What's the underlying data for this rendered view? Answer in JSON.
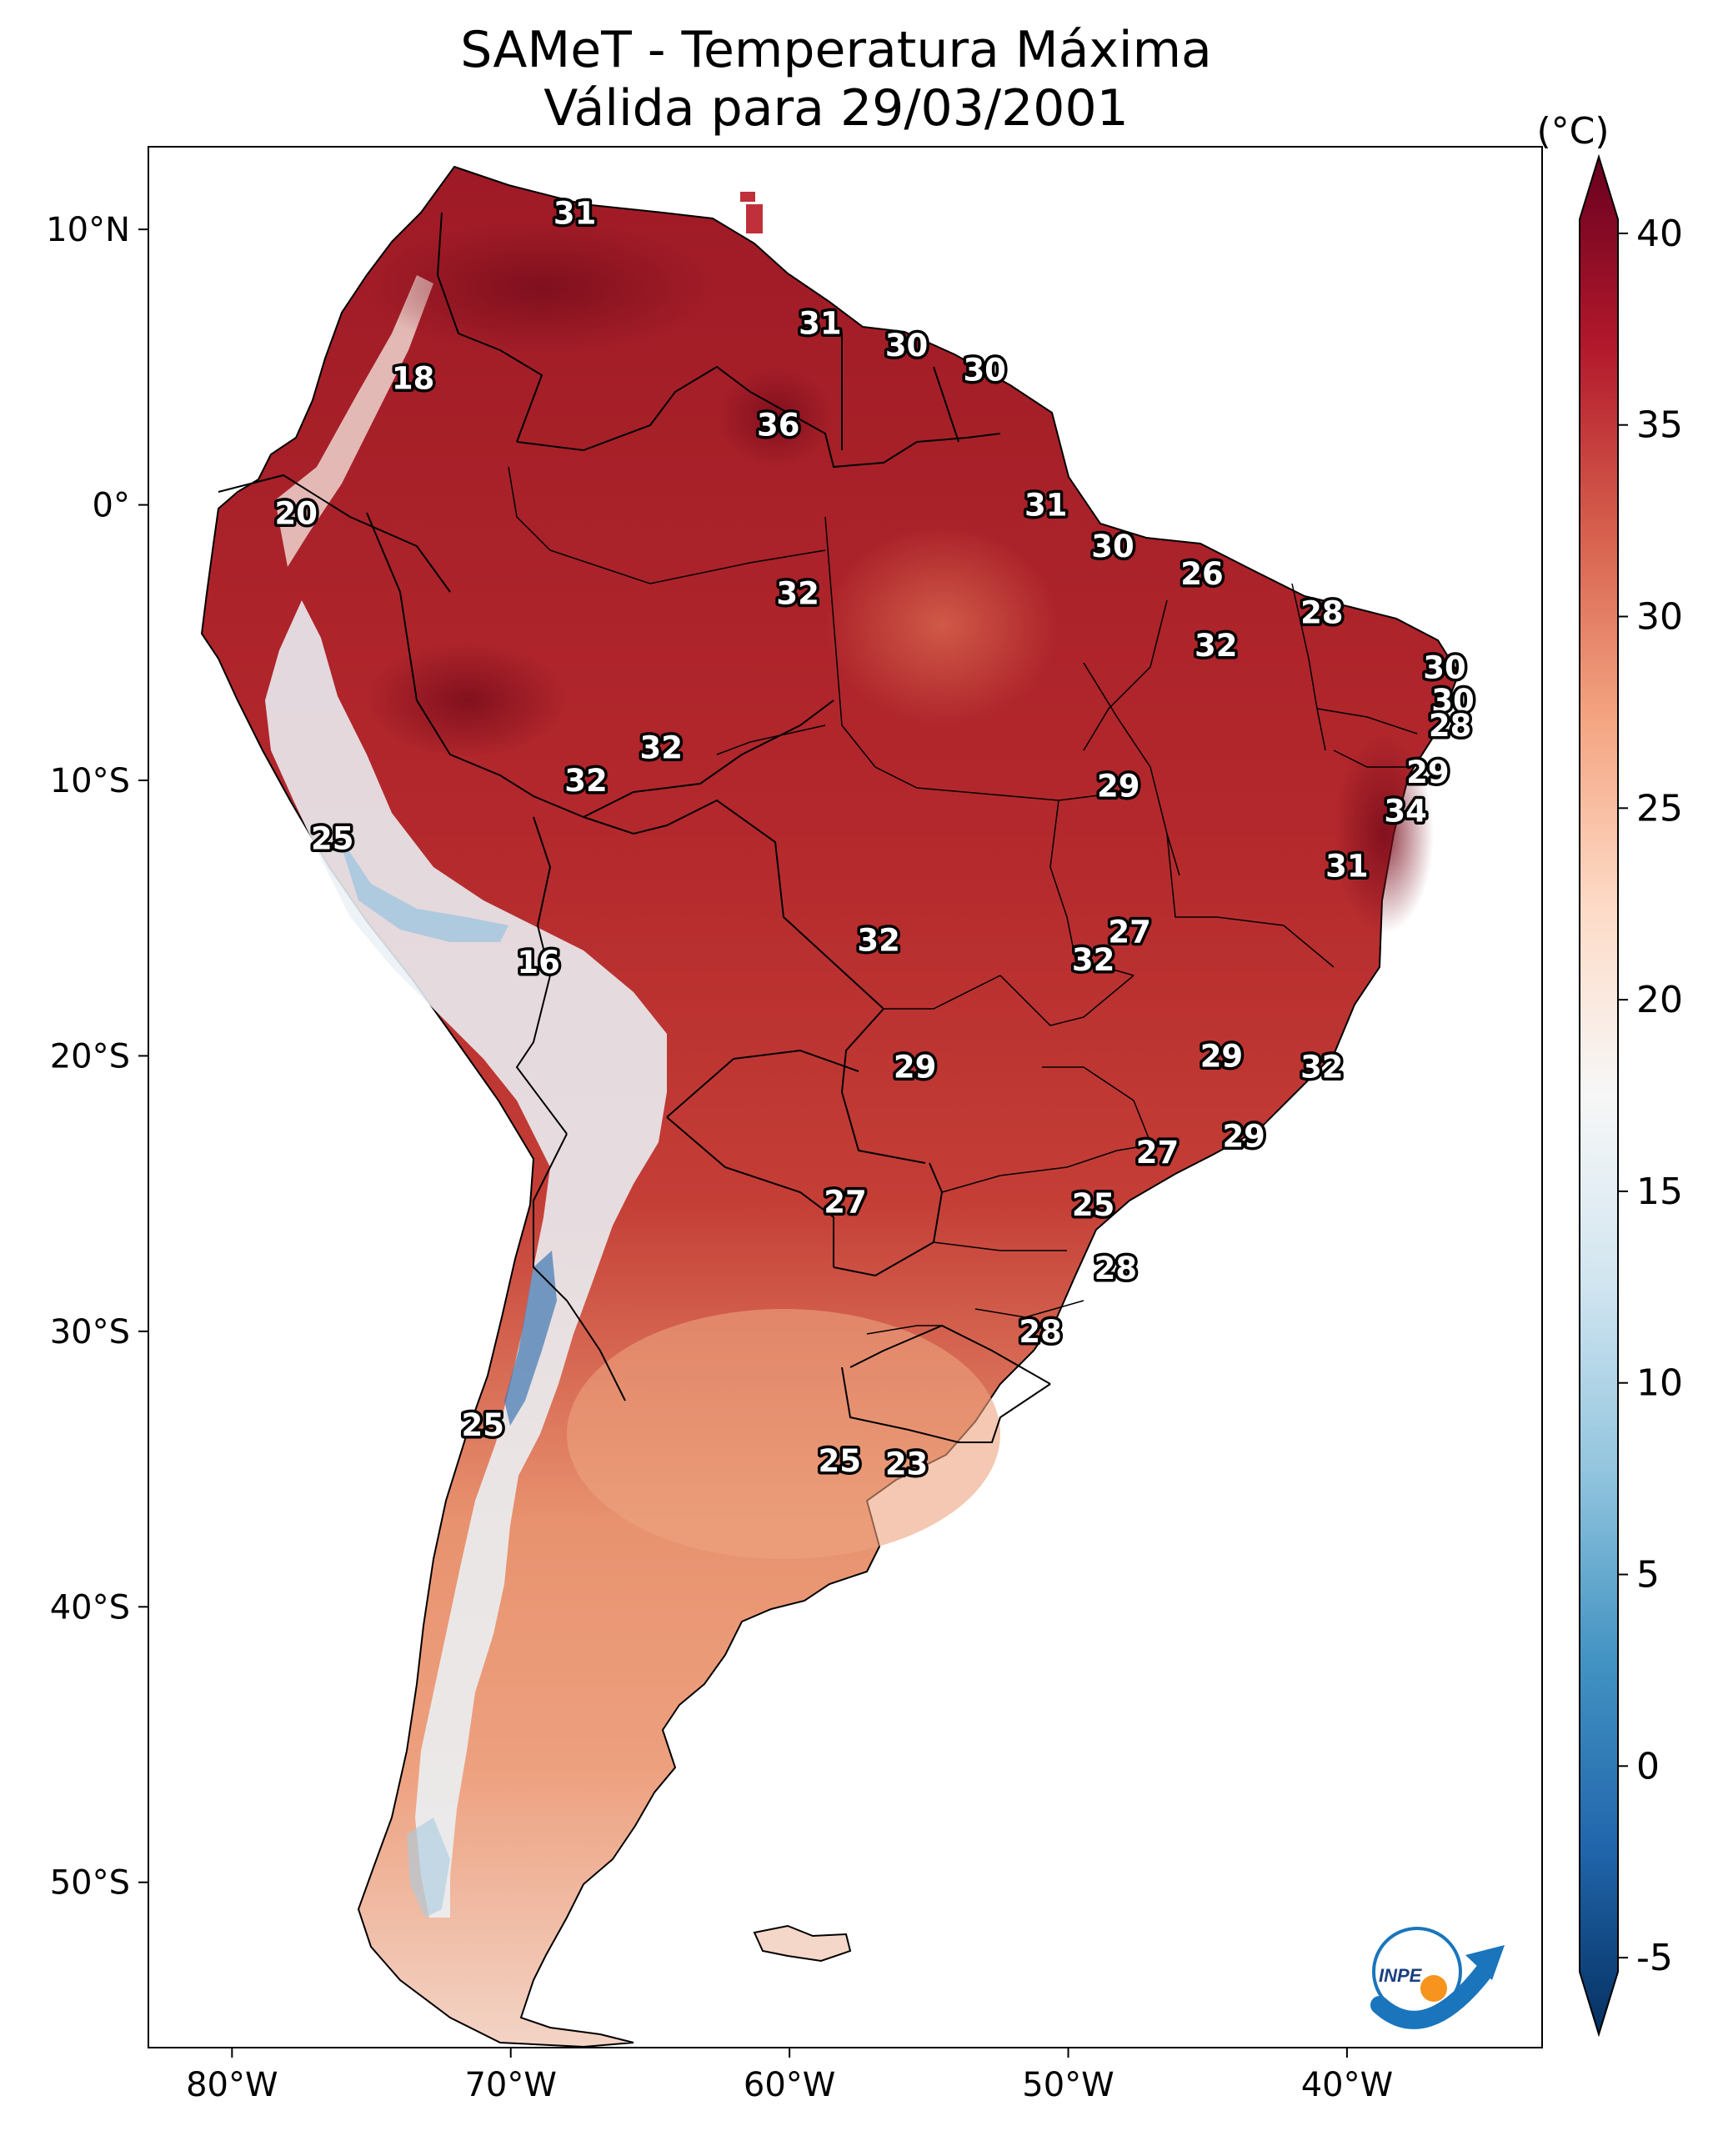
{
  "title_line1": "SAMeT - Temperatura Máxima",
  "title_line2": "Válida para 29/03/2001",
  "colorbar": {
    "unit": "(°C)",
    "min": -7,
    "max": 42,
    "ticks": [
      {
        "v": 40,
        "t": "40"
      },
      {
        "v": 35,
        "t": "35"
      },
      {
        "v": 30,
        "t": "30"
      },
      {
        "v": 25,
        "t": "25"
      },
      {
        "v": 20,
        "t": "20"
      },
      {
        "v": 15,
        "t": "15"
      },
      {
        "v": 10,
        "t": "10"
      },
      {
        "v": 5,
        "t": "5"
      },
      {
        "v": 0,
        "t": "0"
      },
      {
        "v": -5,
        "t": "-5"
      }
    ],
    "colors": [
      "#053061",
      "#2166ac",
      "#4393c3",
      "#92c5de",
      "#d1e5f0",
      "#f7f7f7",
      "#fddbc7",
      "#f4a582",
      "#d6604d",
      "#b2182b",
      "#67001f"
    ]
  },
  "chart_data": {
    "type": "map",
    "extent": {
      "lon": [
        -83,
        -33
      ],
      "lat": [
        -56,
        13
      ]
    },
    "lon_ticks": [
      {
        "v": -80,
        "t": "80°W"
      },
      {
        "v": -70,
        "t": "70°W"
      },
      {
        "v": -60,
        "t": "60°W"
      },
      {
        "v": -50,
        "t": "50°W"
      },
      {
        "v": -40,
        "t": "40°W"
      }
    ],
    "lat_ticks": [
      {
        "v": 10,
        "t": "10°N"
      },
      {
        "v": 0,
        "t": "0°"
      },
      {
        "v": -10,
        "t": "10°S"
      },
      {
        "v": -20,
        "t": "20°S"
      },
      {
        "v": -30,
        "t": "30°S"
      },
      {
        "v": -40,
        "t": "40°S"
      },
      {
        "v": -50,
        "t": "50°S"
      }
    ],
    "labels": [
      {
        "lon": -67.7,
        "lat": 10.6,
        "t": "31"
      },
      {
        "lon": -58.9,
        "lat": 6.6,
        "t": "31"
      },
      {
        "lon": -55.8,
        "lat": 5.8,
        "t": "30"
      },
      {
        "lon": -53.0,
        "lat": 4.9,
        "t": "30"
      },
      {
        "lon": -73.5,
        "lat": 4.6,
        "t": "18"
      },
      {
        "lon": -60.4,
        "lat": 2.9,
        "t": "36"
      },
      {
        "lon": -50.8,
        "lat": 0.0,
        "t": "31"
      },
      {
        "lon": -48.4,
        "lat": -1.5,
        "t": "30"
      },
      {
        "lon": -77.7,
        "lat": -0.3,
        "t": "20"
      },
      {
        "lon": -45.2,
        "lat": -2.5,
        "t": "26"
      },
      {
        "lon": -59.7,
        "lat": -3.2,
        "t": "32"
      },
      {
        "lon": -40.9,
        "lat": -3.9,
        "t": "28"
      },
      {
        "lon": -44.7,
        "lat": -5.1,
        "t": "32"
      },
      {
        "lon": -36.5,
        "lat": -5.9,
        "t": "30"
      },
      {
        "lon": -36.2,
        "lat": -7.1,
        "t": "30"
      },
      {
        "lon": -36.3,
        "lat": -8.0,
        "t": "28"
      },
      {
        "lon": -64.6,
        "lat": -8.8,
        "t": "32"
      },
      {
        "lon": -67.3,
        "lat": -10.0,
        "t": "32"
      },
      {
        "lon": -48.2,
        "lat": -10.2,
        "t": "29"
      },
      {
        "lon": -37.1,
        "lat": -9.7,
        "t": "29"
      },
      {
        "lon": -37.9,
        "lat": -11.1,
        "t": "34"
      },
      {
        "lon": -76.4,
        "lat": -12.1,
        "t": "25"
      },
      {
        "lon": -40.0,
        "lat": -13.1,
        "t": "31"
      },
      {
        "lon": -47.8,
        "lat": -15.5,
        "t": "27"
      },
      {
        "lon": -56.8,
        "lat": -15.8,
        "t": "32"
      },
      {
        "lon": -49.1,
        "lat": -16.5,
        "t": "32"
      },
      {
        "lon": -69.0,
        "lat": -16.6,
        "t": "16"
      },
      {
        "lon": -44.5,
        "lat": -20.0,
        "t": "29"
      },
      {
        "lon": -55.5,
        "lat": -20.4,
        "t": "29"
      },
      {
        "lon": -40.9,
        "lat": -20.4,
        "t": "32"
      },
      {
        "lon": -43.7,
        "lat": -22.9,
        "t": "29"
      },
      {
        "lon": -46.8,
        "lat": -23.5,
        "t": "27"
      },
      {
        "lon": -58.0,
        "lat": -25.3,
        "t": "27"
      },
      {
        "lon": -49.1,
        "lat": -25.4,
        "t": "25"
      },
      {
        "lon": -48.3,
        "lat": -27.7,
        "t": "28"
      },
      {
        "lon": -51.0,
        "lat": -30.0,
        "t": "28"
      },
      {
        "lon": -71.0,
        "lat": -33.4,
        "t": "25"
      },
      {
        "lon": -58.2,
        "lat": -34.7,
        "t": "25"
      },
      {
        "lon": -55.8,
        "lat": -34.8,
        "t": "23"
      }
    ]
  }
}
